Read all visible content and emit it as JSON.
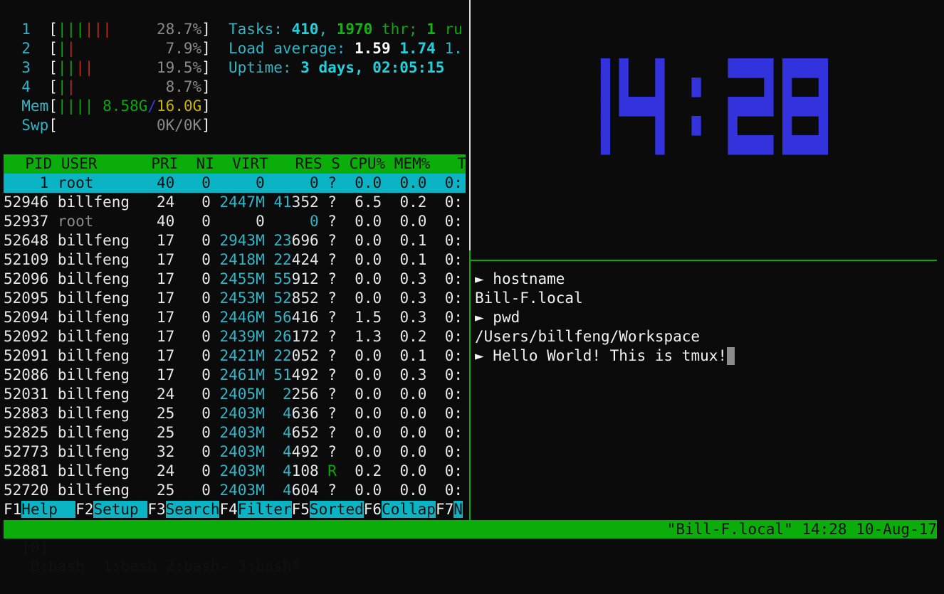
{
  "htop": {
    "cpu_meters": [
      {
        "label": "1",
        "bars": [
          "normal",
          "normal",
          "normal",
          "kernel",
          "kernel",
          "kernel"
        ],
        "value": "28.7%"
      },
      {
        "label": "2",
        "bars": [
          "normal",
          "kernel"
        ],
        "value": "7.9%"
      },
      {
        "label": "3",
        "bars": [
          "normal",
          "normal",
          "kernel",
          "kernel"
        ],
        "value": "19.5%"
      },
      {
        "label": "4",
        "bars": [
          "normal",
          "kernel"
        ],
        "value": "8.7%"
      }
    ],
    "mem": {
      "label": "Mem",
      "bars": [
        "normal",
        "normal",
        "normal",
        "normal"
      ],
      "used": "8.58G",
      "sep": "/",
      "total": "16.0G"
    },
    "swp": {
      "label": "Swp",
      "value": "0K/0K"
    },
    "tasks": {
      "label": "Tasks: ",
      "count": "410",
      "sep": ", ",
      "threads": "1970",
      "thr_label": " thr; ",
      "running": "1",
      "run_label": " ru"
    },
    "load": {
      "label": "Load average: ",
      "v1": "1.59",
      "v5": "1.74",
      "v15": "1."
    },
    "uptime": {
      "label": "Uptime: ",
      "value": "3 days, 02:05:15"
    },
    "columns": [
      "PID",
      "USER",
      "PRI",
      "NI",
      "VIRT",
      "RES",
      "S",
      "CPU%",
      "MEM%",
      "T"
    ],
    "processes": [
      {
        "pid": "1",
        "user": "root",
        "pri": "40",
        "ni": "0",
        "virt": "0",
        "res": "0",
        "s": "?",
        "cpu": "0.0",
        "mem": "0.0",
        "time": "0:",
        "selected": true
      },
      {
        "pid": "52946",
        "user": "billfeng",
        "pri": "24",
        "ni": "0",
        "virt": "2447M",
        "res": "41352",
        "s": "?",
        "cpu": "6.5",
        "mem": "0.2",
        "time": "0:"
      },
      {
        "pid": "52937",
        "user": "root",
        "pri": "40",
        "ni": "0",
        "virt": "0",
        "res": "0",
        "s": "?",
        "cpu": "0.0",
        "mem": "0.0",
        "time": "0:"
      },
      {
        "pid": "52648",
        "user": "billfeng",
        "pri": "17",
        "ni": "0",
        "virt": "2943M",
        "res": "23696",
        "s": "?",
        "cpu": "0.0",
        "mem": "0.1",
        "time": "0:"
      },
      {
        "pid": "52109",
        "user": "billfeng",
        "pri": "17",
        "ni": "0",
        "virt": "2418M",
        "res": "22424",
        "s": "?",
        "cpu": "0.0",
        "mem": "0.1",
        "time": "0:"
      },
      {
        "pid": "52096",
        "user": "billfeng",
        "pri": "17",
        "ni": "0",
        "virt": "2455M",
        "res": "55912",
        "s": "?",
        "cpu": "0.0",
        "mem": "0.3",
        "time": "0:"
      },
      {
        "pid": "52095",
        "user": "billfeng",
        "pri": "17",
        "ni": "0",
        "virt": "2453M",
        "res": "52852",
        "s": "?",
        "cpu": "0.0",
        "mem": "0.3",
        "time": "0:"
      },
      {
        "pid": "52094",
        "user": "billfeng",
        "pri": "17",
        "ni": "0",
        "virt": "2446M",
        "res": "56416",
        "s": "?",
        "cpu": "1.5",
        "mem": "0.3",
        "time": "0:"
      },
      {
        "pid": "52092",
        "user": "billfeng",
        "pri": "17",
        "ni": "0",
        "virt": "2439M",
        "res": "26172",
        "s": "?",
        "cpu": "1.3",
        "mem": "0.2",
        "time": "0:"
      },
      {
        "pid": "52091",
        "user": "billfeng",
        "pri": "17",
        "ni": "0",
        "virt": "2421M",
        "res": "22052",
        "s": "?",
        "cpu": "0.0",
        "mem": "0.1",
        "time": "0:"
      },
      {
        "pid": "52086",
        "user": "billfeng",
        "pri": "17",
        "ni": "0",
        "virt": "2461M",
        "res": "51492",
        "s": "?",
        "cpu": "0.0",
        "mem": "0.3",
        "time": "0:"
      },
      {
        "pid": "52031",
        "user": "billfeng",
        "pri": "24",
        "ni": "0",
        "virt": "2405M",
        "res": "2256",
        "s": "?",
        "cpu": "0.0",
        "mem": "0.0",
        "time": "0:"
      },
      {
        "pid": "52883",
        "user": "billfeng",
        "pri": "25",
        "ni": "0",
        "virt": "2403M",
        "res": "4636",
        "s": "?",
        "cpu": "0.0",
        "mem": "0.0",
        "time": "0:"
      },
      {
        "pid": "52825",
        "user": "billfeng",
        "pri": "25",
        "ni": "0",
        "virt": "2403M",
        "res": "4652",
        "s": "?",
        "cpu": "0.0",
        "mem": "0.0",
        "time": "0:"
      },
      {
        "pid": "52773",
        "user": "billfeng",
        "pri": "32",
        "ni": "0",
        "virt": "2403M",
        "res": "4492",
        "s": "?",
        "cpu": "0.0",
        "mem": "0.0",
        "time": "0:"
      },
      {
        "pid": "52881",
        "user": "billfeng",
        "pri": "24",
        "ni": "0",
        "virt": "2403M",
        "res": "4108",
        "s": "R",
        "cpu": "0.2",
        "mem": "0.0",
        "time": "0:"
      },
      {
        "pid": "52720",
        "user": "billfeng",
        "pri": "25",
        "ni": "0",
        "virt": "2403M",
        "res": "4604",
        "s": "?",
        "cpu": "0.0",
        "mem": "0.0",
        "time": "0:"
      }
    ],
    "function_keys": [
      {
        "key": "F1",
        "label": "Help  "
      },
      {
        "key": "F2",
        "label": "Setup "
      },
      {
        "key": "F3",
        "label": "Search"
      },
      {
        "key": "F4",
        "label": "Filter"
      },
      {
        "key": "F5",
        "label": "Sorted"
      },
      {
        "key": "F6",
        "label": "Collap"
      },
      {
        "key": "F7",
        "label": "N"
      }
    ]
  },
  "clock": {
    "time": "14:28",
    "color": "#3333dd"
  },
  "shell": {
    "prompt_icon": "triangle-right-icon",
    "lines": [
      {
        "prompt": true,
        "text": "hostname"
      },
      {
        "prompt": false,
        "text": "Bill-F.local"
      },
      {
        "prompt": true,
        "text": "pwd"
      },
      {
        "prompt": false,
        "text": "/Users/billfeng/Workspace"
      },
      {
        "prompt": true,
        "text": "Hello World! This is tmux!",
        "cursor": true
      }
    ]
  },
  "tmux_status": {
    "session": "[0]",
    "windows": [
      "0:bash",
      "1:bash",
      "2:bash-",
      "3:bash*"
    ],
    "right": "\"Bill-F.local\" 14:28 10-Aug-17"
  },
  "colors": {
    "status_bg": "#0aad0a",
    "header_bg": "#0aad0a",
    "selected_bg": "#0ab4c4",
    "clock": "#3333dd"
  }
}
